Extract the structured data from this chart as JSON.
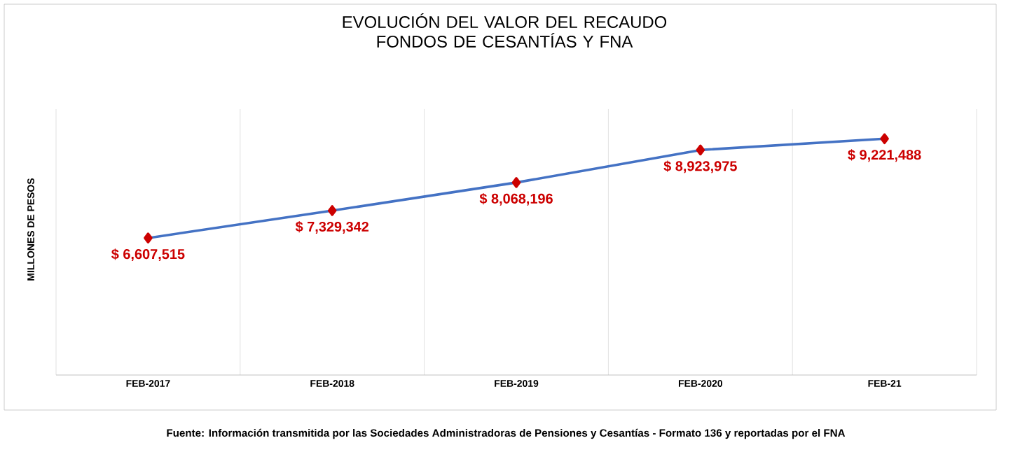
{
  "chart_data": {
    "type": "line",
    "title": "EVOLUCIÓN DEL VALOR DEL RECAUDO\nFONDOS DE CESANTÍAS Y FNA",
    "ylabel": "MILLONES DE PESOS",
    "categories": [
      "FEB-2017",
      "FEB-2018",
      "FEB-2019",
      "FEB-2020",
      "FEB-21"
    ],
    "series": [
      {
        "color": "#4472c4",
        "values": [
          6607515,
          7329342,
          8068196,
          8923975,
          9221488
        ],
        "value_labels": [
          "$ 6,607,515",
          "$ 7,329,342",
          "$ 8,068,196",
          "$ 8,923,975",
          "$ 9,221,488"
        ]
      }
    ],
    "ylim": [
      3000000,
      10000000
    ],
    "tick_labels": "x",
    "grid": "x",
    "marker": "diamond",
    "line_style": "solid",
    "annotations": [
      "Fuente: Información transmitida por las Sociedades Administradoras de Pensiones y Cesantías - Formato 136 y reportadas por el FNA"
    ]
  }
}
